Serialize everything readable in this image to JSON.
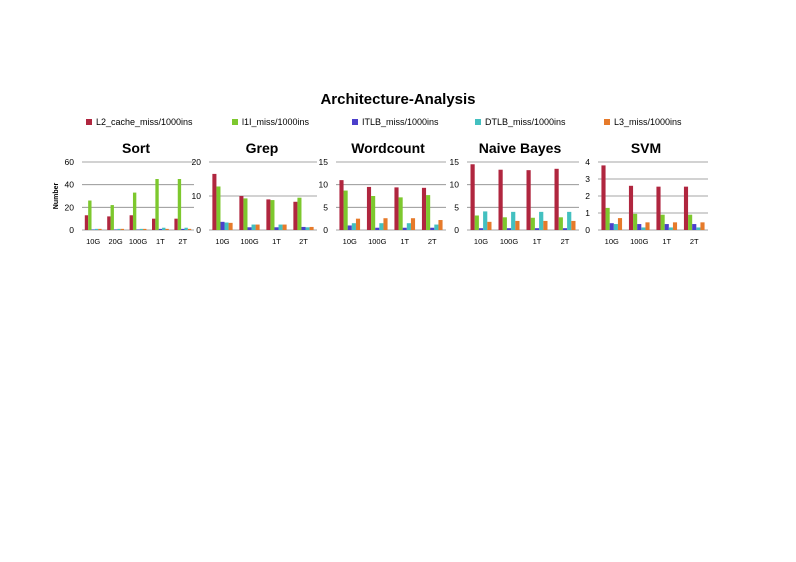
{
  "title": "Architecture-Analysis",
  "legend": [
    {
      "name": "L2_cache_miss/1000ins",
      "color": "#B0263F"
    },
    {
      "name": "l1I_miss/1000ins",
      "color": "#7DC82E"
    },
    {
      "name": "ITLB_miss/1000ins",
      "color": "#4B3FCB"
    },
    {
      "name": "DTLB_miss/1000ins",
      "color": "#43C0C0"
    },
    {
      "name": "L3_miss/1000ins",
      "color": "#E67A2A"
    }
  ],
  "chart_data": [
    {
      "type": "bar",
      "title": "Sort",
      "ylabel": "Number",
      "ylim": [
        0,
        60
      ],
      "yticks": [
        0,
        20,
        40,
        60
      ],
      "grid": true,
      "categories": [
        "10G",
        "20G",
        "100G",
        "1T",
        "2T"
      ],
      "series": [
        {
          "name": "L2_cache_miss/1000ins",
          "values": [
            13,
            12,
            13,
            10,
            10
          ]
        },
        {
          "name": "l1I_miss/1000ins",
          "values": [
            26,
            22,
            33,
            45,
            45
          ]
        },
        {
          "name": "ITLB_miss/1000ins",
          "values": [
            0.5,
            0.5,
            0.5,
            1,
            1
          ]
        },
        {
          "name": "DTLB_miss/1000ins",
          "values": [
            1,
            1,
            1,
            2,
            2
          ]
        },
        {
          "name": "L3_miss/1000ins",
          "values": [
            1,
            1,
            1,
            1,
            1
          ]
        }
      ]
    },
    {
      "type": "bar",
      "title": "Grep",
      "ylabel": "",
      "ylim": [
        0,
        20
      ],
      "yticks": [
        0,
        10,
        20
      ],
      "grid": true,
      "categories": [
        "10G",
        "100G",
        "1T",
        "2T"
      ],
      "series": [
        {
          "name": "L2_cache_miss/1000ins",
          "values": [
            16.5,
            10,
            9,
            8.3
          ]
        },
        {
          "name": "l1I_miss/1000ins",
          "values": [
            12.8,
            9.3,
            8.8,
            9.5
          ]
        },
        {
          "name": "ITLB_miss/1000ins",
          "values": [
            2.4,
            0.8,
            0.8,
            0.9
          ]
        },
        {
          "name": "DTLB_miss/1000ins",
          "values": [
            2.2,
            1.6,
            1.6,
            0.8
          ]
        },
        {
          "name": "L3_miss/1000ins",
          "values": [
            2.1,
            1.6,
            1.6,
            0.9
          ]
        }
      ]
    },
    {
      "type": "bar",
      "title": "Wordcount",
      "ylabel": "",
      "ylim": [
        0,
        15
      ],
      "yticks": [
        0,
        5,
        10,
        15
      ],
      "grid": true,
      "categories": [
        "10G",
        "100G",
        "1T",
        "2T"
      ],
      "series": [
        {
          "name": "L2_cache_miss/1000ins",
          "values": [
            11,
            9.5,
            9.4,
            9.3
          ]
        },
        {
          "name": "l1I_miss/1000ins",
          "values": [
            8.7,
            7.5,
            7.2,
            7.7
          ]
        },
        {
          "name": "ITLB_miss/1000ins",
          "values": [
            1,
            0.5,
            0.5,
            0.5
          ]
        },
        {
          "name": "DTLB_miss/1000ins",
          "values": [
            1.5,
            1.5,
            1.5,
            1.2
          ]
        },
        {
          "name": "L3_miss/1000ins",
          "values": [
            2.5,
            2.6,
            2.6,
            2.2
          ]
        }
      ]
    },
    {
      "type": "bar",
      "title": "Naive Bayes",
      "ylabel": "",
      "ylim": [
        0,
        15
      ],
      "yticks": [
        0,
        5,
        10,
        15
      ],
      "grid": true,
      "categories": [
        "10G",
        "100G",
        "1T",
        "2T"
      ],
      "series": [
        {
          "name": "L2_cache_miss/1000ins",
          "values": [
            14.5,
            13.3,
            13.2,
            13.5
          ]
        },
        {
          "name": "l1I_miss/1000ins",
          "values": [
            3.2,
            2.8,
            2.7,
            2.8
          ]
        },
        {
          "name": "ITLB_miss/1000ins",
          "values": [
            0.4,
            0.4,
            0.4,
            0.4
          ]
        },
        {
          "name": "DTLB_miss/1000ins",
          "values": [
            4.1,
            4,
            4,
            4
          ]
        },
        {
          "name": "L3_miss/1000ins",
          "values": [
            1.8,
            2,
            2,
            2
          ]
        }
      ]
    },
    {
      "type": "bar",
      "title": "SVM",
      "ylabel": "",
      "ylim": [
        0,
        4
      ],
      "yticks": [
        0,
        1,
        2,
        3,
        4
      ],
      "grid": true,
      "categories": [
        "10G",
        "100G",
        "1T",
        "2T"
      ],
      "series": [
        {
          "name": "L2_cache_miss/1000ins",
          "values": [
            3.8,
            2.6,
            2.55,
            2.55
          ]
        },
        {
          "name": "l1I_miss/1000ins",
          "values": [
            1.3,
            0.95,
            0.9,
            0.9
          ]
        },
        {
          "name": "ITLB_miss/1000ins",
          "values": [
            0.4,
            0.35,
            0.35,
            0.35
          ]
        },
        {
          "name": "DTLB_miss/1000ins",
          "values": [
            0.35,
            0.15,
            0.15,
            0.15
          ]
        },
        {
          "name": "L3_miss/1000ins",
          "values": [
            0.7,
            0.45,
            0.45,
            0.45
          ]
        }
      ]
    }
  ]
}
